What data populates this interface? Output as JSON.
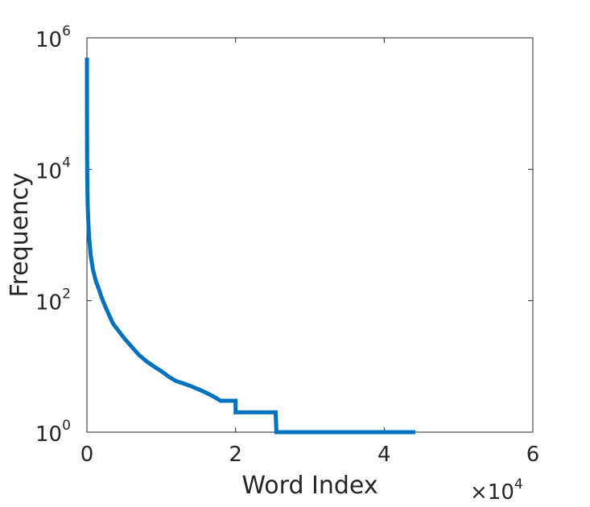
{
  "chart_data": {
    "type": "line",
    "title": "",
    "xlabel": "Word Index",
    "ylabel": "Frequency",
    "x_exponent_label": {
      "base": "×10",
      "exp": "4"
    },
    "xlim": [
      0,
      60000
    ],
    "ylim": [
      1,
      1000000
    ],
    "y_scale": "log",
    "x_ticks": [
      {
        "value": 0,
        "label": "0"
      },
      {
        "value": 20000,
        "label": "2"
      },
      {
        "value": 40000,
        "label": "4"
      },
      {
        "value": 60000,
        "label": "6"
      }
    ],
    "y_ticks": [
      {
        "value": 1,
        "base": "10",
        "exp": "0"
      },
      {
        "value": 100,
        "base": "10",
        "exp": "2"
      },
      {
        "value": 10000,
        "base": "10",
        "exp": "4"
      },
      {
        "value": 1000000,
        "base": "10",
        "exp": "6"
      }
    ],
    "grid": false,
    "legend": "none",
    "series": [
      {
        "color": "#0072bd",
        "x": [
          1,
          10,
          30,
          60,
          100,
          150,
          200,
          300,
          500,
          800,
          1200,
          1600,
          2000,
          2500,
          3000,
          3500,
          4000,
          5000,
          6000,
          7000,
          8000,
          9000,
          10000,
          11000,
          12000,
          13000,
          14000,
          15000,
          16000,
          17000,
          18000,
          19000,
          19999,
          20000,
          25400,
          25500,
          44200
        ],
        "y": [
          500000,
          40000,
          10000,
          5000,
          3000,
          2000,
          1500,
          900,
          500,
          300,
          200,
          150,
          110,
          80,
          60,
          45,
          38,
          27,
          20,
          15,
          12,
          10,
          8.5,
          7,
          6,
          5.5,
          5,
          4.5,
          4,
          3.5,
          3,
          3,
          3,
          2,
          2,
          1,
          1
        ]
      }
    ]
  }
}
